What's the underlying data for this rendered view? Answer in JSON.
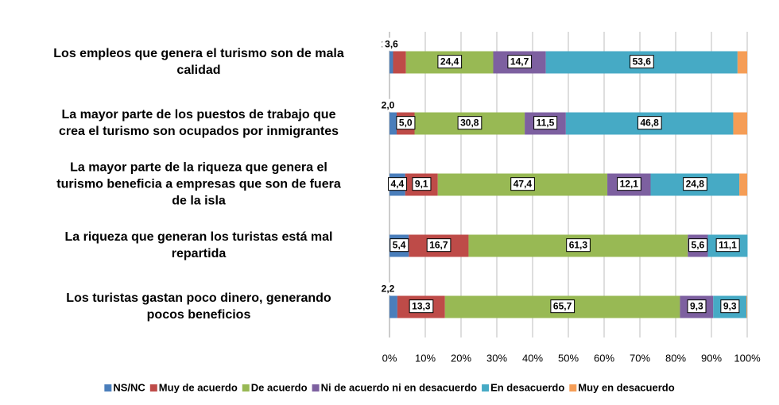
{
  "chart_data": {
    "type": "stacked-bar-horizontal",
    "categories": [
      "Los empleos que genera el turismo son de mala\ncalidad",
      "La mayor parte de los puestos de trabajo que\ncrea el turismo son ocupados por inmigrantes",
      "La mayor parte de la riqueza que genera el\nturismo beneficia a empresas que son de fuera\nde la isla",
      "La riqueza que generan los turistas está mal\nrepartida",
      "Los turistas gastan poco dinero, generando\npocos beneficios"
    ],
    "series": [
      {
        "name": "NS/NC",
        "color": "#4a7ebb",
        "values": [
          1.0,
          2.0,
          4.4,
          5.4,
          2.2
        ],
        "value_labels": [
          "1,0",
          "2,0",
          "4,4",
          "5,4",
          "2,2"
        ]
      },
      {
        "name": "Muy de acuerdo",
        "color": "#be4b48",
        "values": [
          3.6,
          5.0,
          9.1,
          16.7,
          13.3
        ],
        "value_labels": [
          "3,6",
          "5,0",
          "9,1",
          "16,7",
          "13,3"
        ]
      },
      {
        "name": "De acuerdo",
        "color": "#98b954",
        "values": [
          24.4,
          30.8,
          47.4,
          61.3,
          65.7
        ],
        "value_labels": [
          "24,4",
          "30,8",
          "47,4",
          "61,3",
          "65,7"
        ]
      },
      {
        "name": "Ni de acuerdo ni en desacuerdo",
        "color": "#7d60a0",
        "values": [
          14.7,
          11.5,
          12.1,
          5.6,
          9.3
        ],
        "value_labels": [
          "14,7",
          "11,5",
          "12,1",
          "5,6",
          "9,3"
        ]
      },
      {
        "name": "En desacuerdo",
        "color": "#46aac5",
        "values": [
          53.6,
          46.8,
          24.8,
          11.1,
          9.3
        ],
        "value_labels": [
          "53,6",
          "46,8",
          "24,8",
          "11,1",
          "9,3"
        ]
      },
      {
        "name": "Muy en desacuerdo",
        "color": "#f59d56",
        "values": [
          2.7,
          3.9,
          2.2,
          0,
          0.2
        ]
      }
    ],
    "xlim": [
      0,
      100
    ],
    "xticks": [
      {
        "value": 0,
        "label": "0%"
      },
      {
        "value": 10,
        "label": "10%"
      },
      {
        "value": 20,
        "label": "20%"
      },
      {
        "value": 30,
        "label": "30%"
      },
      {
        "value": 40,
        "label": "40%"
      },
      {
        "value": 50,
        "label": "50%"
      },
      {
        "value": 60,
        "label": "60%"
      },
      {
        "value": 70,
        "label": "70%"
      },
      {
        "value": 80,
        "label": "80%"
      },
      {
        "value": 90,
        "label": "90%"
      },
      {
        "value": 100,
        "label": "100%"
      }
    ],
    "grid": true,
    "legend": "bottom"
  }
}
